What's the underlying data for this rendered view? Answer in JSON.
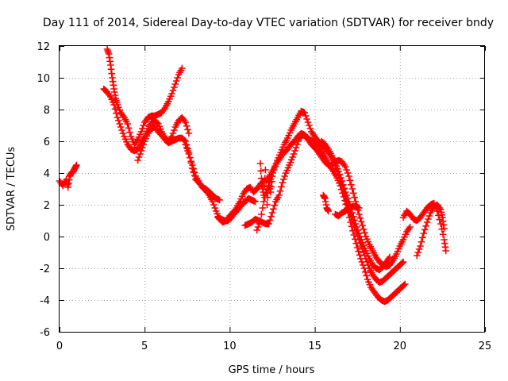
{
  "chart_data": {
    "type": "scatter",
    "title": "Day 111 of 2014, Sidereal Day-to-day VTEC variation (SDTVAR) for receiver bndy",
    "xlabel": "GPS time / hours",
    "ylabel": "SDTVAR / TECUs",
    "xlim": [
      0,
      25
    ],
    "ylim": [
      -6,
      12
    ],
    "xticks": [
      "0",
      "5",
      "10",
      "15",
      "20",
      "25"
    ],
    "yticks": [
      "-6",
      "-4",
      "-2",
      "0",
      "2",
      "4",
      "6",
      "8",
      "10",
      "12"
    ],
    "grid": true,
    "marker": "+",
    "color": "#ff0000",
    "series": [
      {
        "x": [
          0.0,
          0.2,
          0.4,
          0.5,
          0.6,
          0.7,
          0.8,
          0.9,
          1.0
        ],
        "y": [
          3.5,
          3.2,
          3.6,
          3.1,
          3.8,
          4.0,
          4.1,
          4.3,
          4.5
        ]
      },
      {
        "x": [
          2.8,
          2.9,
          3.0,
          3.1,
          3.2,
          3.3,
          3.4,
          3.6,
          3.8,
          4.0,
          4.2,
          4.4,
          4.6,
          4.8,
          5.0,
          5.2,
          5.4,
          5.6,
          5.8,
          6.0,
          6.2,
          6.4,
          6.6,
          6.8,
          7.0,
          7.2
        ],
        "y": [
          11.8,
          11.5,
          10.8,
          10.0,
          9.3,
          8.7,
          8.3,
          7.8,
          7.5,
          7.1,
          6.3,
          5.8,
          6.1,
          6.6,
          7.2,
          7.5,
          7.6,
          7.6,
          7.7,
          7.8,
          8.1,
          8.5,
          9.0,
          9.6,
          10.2,
          10.6
        ]
      },
      {
        "x": [
          2.6,
          2.8,
          3.0,
          3.2,
          3.4,
          3.6,
          3.8,
          4.0,
          4.2,
          4.4,
          4.6,
          4.8,
          5.0,
          5.2,
          5.4,
          5.6,
          5.8,
          6.0,
          6.2,
          6.4,
          6.6,
          6.8,
          7.0,
          7.2,
          7.4,
          7.6
        ],
        "y": [
          9.3,
          9.1,
          8.8,
          8.3,
          7.5,
          6.9,
          6.3,
          5.8,
          5.5,
          5.4,
          5.5,
          5.9,
          6.3,
          6.8,
          7.2,
          7.3,
          7.1,
          6.6,
          6.2,
          6.0,
          6.3,
          6.9,
          7.3,
          7.5,
          7.2,
          6.5
        ]
      },
      {
        "x": [
          4.6,
          4.8,
          5.0,
          5.2,
          5.4,
          5.6,
          5.8,
          6.0,
          6.2,
          6.4,
          6.6,
          6.8,
          7.0,
          7.2,
          7.4,
          7.6,
          7.8,
          8.0,
          8.2,
          8.4,
          8.6,
          8.8,
          9.0,
          9.2,
          9.4
        ],
        "y": [
          4.8,
          5.4,
          6.0,
          6.5,
          6.8,
          6.9,
          6.6,
          6.4,
          6.1,
          5.9,
          6.0,
          6.1,
          6.2,
          6.2,
          6.0,
          5.3,
          4.3,
          3.6,
          3.4,
          3.1,
          3.0,
          2.8,
          2.6,
          2.4,
          2.3
        ]
      },
      {
        "x": [
          7.4,
          7.6,
          7.8,
          8.0,
          8.2,
          8.4,
          8.6,
          8.8,
          9.0,
          9.2,
          9.4,
          9.6,
          9.8,
          10.0,
          10.2,
          10.4,
          10.6,
          10.8,
          11.0,
          11.2,
          11.4,
          11.6,
          11.8,
          12.0
        ],
        "y": [
          5.8,
          5.2,
          4.5,
          3.8,
          3.4,
          3.1,
          2.9,
          2.6,
          2.2,
          1.6,
          1.1,
          0.9,
          1.0,
          1.3,
          1.5,
          1.8,
          2.2,
          2.7,
          3.0,
          3.1,
          2.8,
          3.0,
          3.3,
          3.5
        ]
      },
      {
        "x": [
          9.3,
          9.5,
          9.7,
          9.9,
          10.1,
          10.3,
          10.5,
          10.7,
          10.9,
          11.1,
          11.3,
          11.5
        ],
        "y": [
          1.2,
          1.1,
          1.0,
          1.0,
          1.2,
          1.5,
          1.7,
          2.0,
          2.2,
          2.4,
          2.3,
          2.2
        ]
      },
      {
        "x": [
          10.9,
          11.1,
          11.3,
          11.5,
          11.7,
          11.9,
          12.1,
          12.3,
          12.5,
          12.7,
          12.9,
          13.1,
          13.3,
          13.5,
          13.7,
          13.9,
          14.1,
          14.3,
          14.5,
          14.7,
          14.9,
          15.1,
          15.3,
          15.5,
          15.7,
          15.9,
          16.1,
          16.3,
          16.5,
          16.7,
          16.9,
          17.1,
          17.3,
          17.5,
          17.7,
          17.9,
          18.1,
          18.3,
          18.5,
          18.7,
          18.9,
          19.1,
          19.3,
          19.5,
          19.7,
          19.9,
          20.1,
          20.3
        ],
        "y": [
          0.7,
          0.8,
          0.9,
          1.1,
          1.0,
          0.9,
          0.8,
          0.8,
          1.5,
          2.2,
          2.6,
          3.4,
          4.0,
          4.5,
          5.0,
          5.6,
          6.2,
          6.4,
          6.3,
          6.1,
          6.0,
          5.9,
          5.6,
          5.2,
          4.8,
          4.4,
          4.1,
          3.7,
          3.2,
          2.5,
          1.8,
          0.9,
          0.1,
          -0.7,
          -1.4,
          -2.0,
          -2.7,
          -3.2,
          -3.5,
          -3.8,
          -4.0,
          -4.1,
          -4.0,
          -3.8,
          -3.6,
          -3.4,
          -3.2,
          -3.0
        ]
      },
      {
        "x": [
          11.6,
          11.8,
          12.0,
          12.2,
          12.4,
          12.6,
          12.8,
          13.0,
          13.2,
          13.4,
          13.6,
          13.8,
          14.0,
          14.2,
          14.4,
          14.6,
          14.8,
          15.0,
          15.2,
          15.4,
          15.6,
          15.8,
          16.0,
          16.2,
          16.4,
          16.6,
          16.8,
          17.0,
          17.2,
          17.4,
          17.6,
          17.8,
          18.0,
          18.2,
          18.4,
          18.6,
          18.8,
          19.0,
          19.2,
          19.4,
          19.6,
          19.8,
          20.0,
          20.2
        ],
        "y": [
          0.4,
          1.0,
          2.2,
          3.0,
          3.6,
          4.2,
          4.8,
          5.3,
          5.8,
          6.2,
          6.7,
          7.1,
          7.5,
          7.9,
          7.8,
          7.2,
          6.6,
          6.3,
          6.0,
          5.8,
          5.6,
          5.3,
          5.0,
          4.5,
          3.9,
          3.2,
          2.5,
          1.7,
          1.0,
          0.4,
          -0.2,
          -0.8,
          -1.4,
          -2.0,
          -2.4,
          -2.7,
          -2.9,
          -2.8,
          -2.6,
          -2.4,
          -2.2,
          -2.0,
          -1.8,
          -1.6
        ]
      },
      {
        "x": [
          12.2,
          12.4,
          12.6,
          12.8,
          13.0,
          13.2,
          13.4,
          13.6,
          13.8,
          14.0,
          14.2,
          14.4,
          14.6,
          14.8,
          15.0,
          15.2,
          15.4,
          15.6,
          15.8,
          16.0,
          16.2,
          16.4,
          16.6,
          16.8,
          17.0,
          17.2,
          17.4,
          17.6,
          17.8,
          18.0,
          18.2,
          18.4,
          18.6,
          18.8,
          19.0,
          19.2,
          19.4,
          19.6,
          19.8,
          20.0,
          20.2,
          20.4,
          20.6
        ],
        "y": [
          3.6,
          3.9,
          4.3,
          4.7,
          5.0,
          5.3,
          5.5,
          5.8,
          6.0,
          6.3,
          6.5,
          6.4,
          6.1,
          5.8,
          5.6,
          5.3,
          5.0,
          4.7,
          4.5,
          4.5,
          4.7,
          4.8,
          4.7,
          4.4,
          3.8,
          3.0,
          2.2,
          1.4,
          0.7,
          0.0,
          -0.5,
          -0.9,
          -1.3,
          -1.6,
          -1.8,
          -1.9,
          -1.8,
          -1.5,
          -1.1,
          -0.6,
          -0.2,
          0.3,
          0.6
        ]
      },
      {
        "x": [
          11.8,
          11.9,
          12.0,
          12.1,
          12.2,
          12.3,
          12.4,
          12.5
        ],
        "y": [
          4.6,
          3.2,
          2.6,
          4.2,
          2.0,
          3.4,
          2.8,
          3.8
        ]
      },
      {
        "x": [
          15.4,
          15.6,
          15.8,
          16.0,
          16.2,
          16.4,
          16.6,
          16.8,
          17.0,
          17.2,
          17.4,
          17.6,
          17.8,
          18.0,
          18.2,
          18.4,
          18.6,
          18.8,
          19.0,
          19.2,
          19.4
        ],
        "y": [
          6.0,
          5.8,
          5.5,
          5.1,
          4.6,
          4.1,
          3.5,
          2.8,
          2.2,
          1.5,
          0.8,
          0.2,
          -0.4,
          -0.9,
          -1.4,
          -1.8,
          -2.0,
          -2.1,
          -1.9,
          -1.6,
          -1.3
        ]
      },
      {
        "x": [
          15.5,
          15.6,
          15.7,
          15.8
        ],
        "y": [
          2.6,
          2.4,
          1.8,
          1.6
        ]
      },
      {
        "x": [
          16.2,
          16.4,
          16.6,
          16.8,
          17.0,
          17.2,
          17.4,
          17.6
        ],
        "y": [
          1.4,
          1.3,
          1.5,
          1.6,
          1.8,
          1.9,
          1.9,
          1.8
        ]
      },
      {
        "x": [
          20.2,
          20.4,
          20.6,
          20.8,
          21.0,
          21.2,
          21.4,
          21.6,
          21.8,
          22.0,
          22.2,
          22.4,
          22.6,
          22.7
        ],
        "y": [
          1.2,
          1.6,
          1.4,
          1.1,
          1.0,
          1.2,
          1.5,
          1.8,
          2.0,
          2.1,
          1.6,
          0.8,
          -0.2,
          -0.9
        ]
      },
      {
        "x": [
          21.0,
          21.2,
          21.4,
          21.6,
          21.8,
          22.0,
          22.2,
          22.4,
          22.5,
          22.6
        ],
        "y": [
          -1.2,
          -0.6,
          0.2,
          0.9,
          1.5,
          1.9,
          2.0,
          1.7,
          1.2,
          0.5
        ]
      }
    ]
  }
}
